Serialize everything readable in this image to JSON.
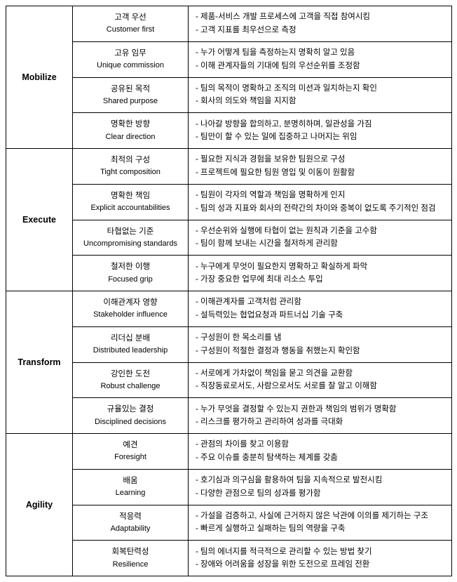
{
  "categories": [
    {
      "name": "Mobilize",
      "items": [
        {
          "title_ko": "고객 우선",
          "title_en": "Customer first",
          "desc1": "- 제품-서비스 개발 프로세스에 고객을 직접 참여시킴",
          "desc2": "- 고객 지표를 최우선으로 측정"
        },
        {
          "title_ko": "고유 임무",
          "title_en": "Unique commission",
          "desc1": "- 누가 어떻게 팀을 측정하는지 명확히 알고 있음",
          "desc2": "- 이해 관계자들의 기대에 팀의 우선순위를 조정함"
        },
        {
          "title_ko": "공유된 목적",
          "title_en": "Shared purpose",
          "desc1": "- 팀의 목적이 명확하고 조직의 미션과 일치하는지 확인",
          "desc2": "- 회사의 의도와 책임을 지지함"
        },
        {
          "title_ko": "명확한 방향",
          "title_en": "Clear direction",
          "desc1": "- 나아갈 방향을 합의하고, 분명히하며, 일관성을 가짐",
          "desc2": "- 팀만이 할 수 있는 일에 집중하고 나머지는 위임"
        }
      ]
    },
    {
      "name": "Execute",
      "items": [
        {
          "title_ko": "최적의 구성",
          "title_en": "Tight composition",
          "desc1": "- 필요한 지식과 경험을 보유한 팀원으로 구성",
          "desc2": "- 프로젝트에 필요한 팀원 영입 및 이동이 원활함"
        },
        {
          "title_ko": "명확한 책임",
          "title_en": "Explicit accountabilities",
          "desc1": "- 팀원이 각자의 역할과 책임을 명확하게 인지",
          "desc2": "- 팀의 성과 지표와 회사의 전략간의 차이와 중복이 없도록 주기적인 점검"
        },
        {
          "title_ko": "타협없는 기준",
          "title_en": "Uncompromising standards",
          "desc1": "- 우선순위와 실행에 타협이 없는 원칙과 기준을 고수함",
          "desc2": "- 팀이 함께 보내는 시간을 철저하게 관리함"
        },
        {
          "title_ko": "철저한 이행",
          "title_en": "Focused grip",
          "desc1": "- 누구에게 무엇이 필요한지 명확하고 확실하게 파악",
          "desc2": "- 가장 중요한 업무에 최대 리소스 투입"
        }
      ]
    },
    {
      "name": "Transform",
      "items": [
        {
          "title_ko": "이해관계자 영향",
          "title_en": "Stakeholder influence",
          "desc1": "- 이해관계자를 고객처럼 관리함",
          "desc2": "- 설득력있는 협업요청과 파트너십 기술 구축"
        },
        {
          "title_ko": "리더십 분배",
          "title_en": "Distributed leadership",
          "desc1": "- 구성원이 한 목소리를 냄",
          "desc2": "- 구성원이 적절한 결정과 행동을 취했는지 확인함"
        },
        {
          "title_ko": "강인한 도전",
          "title_en": "Robust challenge",
          "desc1": "- 서로에게 가차없이 책임을 묻고 의견을 교환함",
          "desc2": "- 직장동료로서도, 사람으로서도 서로를 잘 알고 이해함"
        },
        {
          "title_ko": "규율있는 결정",
          "title_en": "Disciplined decisions",
          "desc1": "- 누가 무엇을 결정할 수 있는지 권한과 책임의 범위가 명확함",
          "desc2": "- 리스크를 평가하고 관리하여 성과를 극대화"
        }
      ]
    },
    {
      "name": "Agility",
      "items": [
        {
          "title_ko": "예견",
          "title_en": "Foresight",
          "desc1": "- 관점의 차이를 찾고 이용함",
          "desc2": "- 주요 이슈를 충분히 탐색하는 체계를 갖춤"
        },
        {
          "title_ko": "배움",
          "title_en": "Learning",
          "desc1": "- 호기심과 의구심을 활용하여 팀을 지속적으로 발전시킴",
          "desc2": "- 다양한 관점으로 팀의 성과를 평가함"
        },
        {
          "title_ko": "적응력",
          "title_en": "Adaptability",
          "desc1": "- 가설을 검증하고, 사실에 근거하지 않은 낙관에 이의를 제기하는 구조",
          "desc2": "- 빠르게 실행하고 실패하는 팀의 역량을 구축"
        },
        {
          "title_ko": "회복탄력성",
          "title_en": "Resilience",
          "desc1": "- 팀의 에너지를 적극적으로 관리할 수 있는 방법 찾기",
          "desc2": "- 장애와 어려움을 성장을 위한 도전으로 프레임 전환"
        }
      ]
    }
  ]
}
